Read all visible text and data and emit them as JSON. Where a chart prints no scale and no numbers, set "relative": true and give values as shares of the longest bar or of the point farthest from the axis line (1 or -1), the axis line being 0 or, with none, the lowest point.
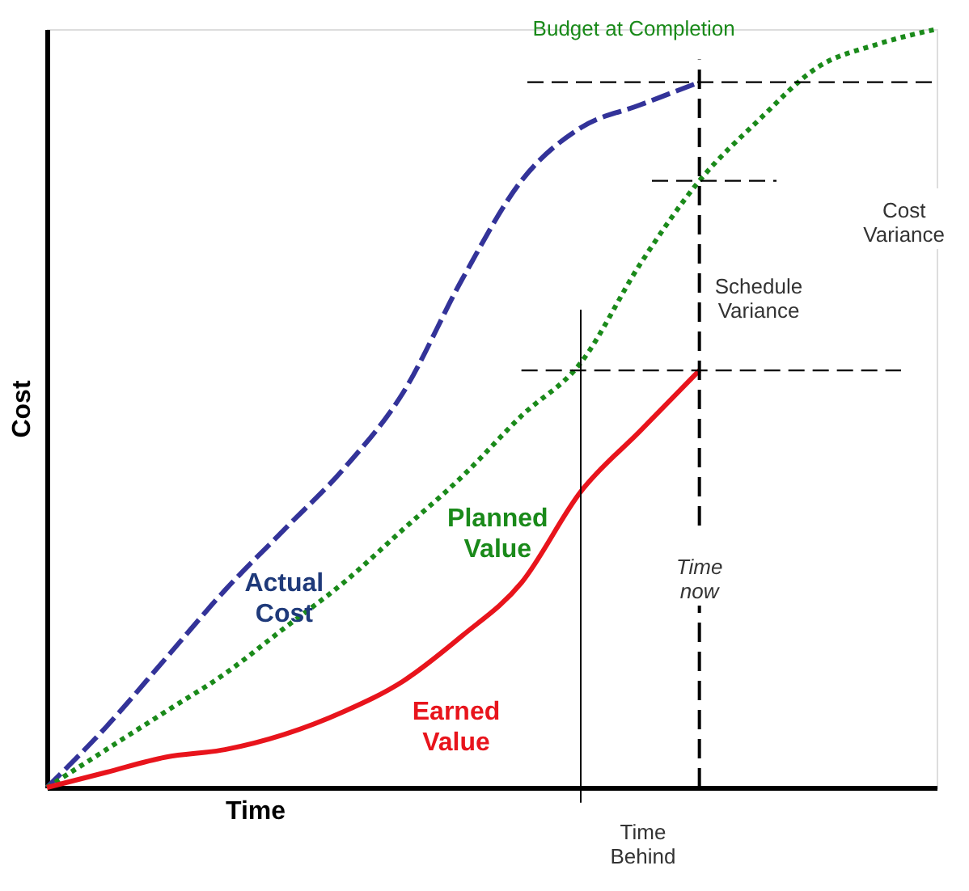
{
  "chart_data": {
    "type": "line",
    "relative": true,
    "xlabel": "Time",
    "ylabel": "Cost",
    "legend": false,
    "categories": [
      null,
      null,
      null,
      null,
      null,
      null,
      null,
      null,
      null,
      null,
      null,
      null,
      null,
      null,
      null,
      null
    ],
    "series": [
      {
        "name": "Actual Cost",
        "color": "#333399",
        "line_style": "dashed",
        "values": [
          0,
          0.08,
          0.17,
          0.26,
          0.34,
          0.42,
          0.52,
          0.67,
          0.8,
          0.87,
          0.9,
          0.93,
          null,
          null,
          null,
          null
        ]
      },
      {
        "name": "Planned Value",
        "color": "#1a8a1a",
        "line_style": "dotted",
        "values": [
          0,
          0.05,
          0.1,
          0.15,
          0.21,
          0.27,
          0.34,
          0.41,
          0.49,
          0.56,
          0.69,
          0.8,
          0.88,
          0.95,
          0.98,
          1.0
        ]
      },
      {
        "name": "Earned Value",
        "color": "#e8141c",
        "line_style": "solid",
        "values": [
          0,
          0.02,
          0.04,
          0.05,
          0.07,
          0.1,
          0.14,
          0.2,
          0.27,
          0.39,
          0.47,
          0.55,
          null,
          null,
          null,
          null
        ]
      }
    ],
    "ref_lines": [
      {
        "axis": "y",
        "value": 0.93,
        "color": "#000000",
        "line_style": "dashed"
      },
      {
        "axis": "y",
        "value": 0.8,
        "color": "#000000",
        "line_style": "dashed"
      },
      {
        "axis": "y",
        "value": 0.55,
        "color": "#000000",
        "line_style": "dashed"
      }
    ],
    "annotations": [
      "Budget at Completion",
      "Cost Variance",
      "Schedule Variance",
      "Time Behind",
      "Time now"
    ]
  }
}
